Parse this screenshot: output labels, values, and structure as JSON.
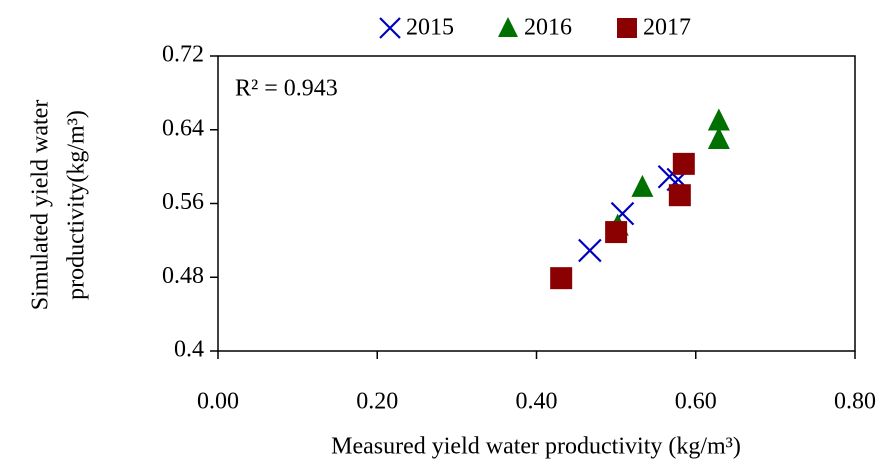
{
  "chart_data": {
    "type": "scatter",
    "xlabel": "Measured yield water productivity (kg/m³)",
    "ylabel": [
      "Simulated yield water",
      "productivity(kg/m³)"
    ],
    "annotation": "R² = 0.943",
    "xlim": [
      0,
      0.8
    ],
    "xticks": [
      {
        "value": 0,
        "label": "0.00"
      },
      {
        "value": 0.2,
        "label": "0.20"
      },
      {
        "value": 0.4,
        "label": "0.40"
      },
      {
        "value": 0.6,
        "label": "0.60"
      },
      {
        "value": 0.8,
        "label": "0.80"
      }
    ],
    "ylim": [
      0.4,
      0.72
    ],
    "yticks": [
      0.4,
      0.48,
      0.56,
      0.64,
      0.72
    ],
    "series": [
      {
        "name": "2015",
        "color": "#0000c0",
        "marker": "x",
        "x": [
          0.467,
          0.508,
          0.567,
          0.578
        ],
        "values": [
          0.509,
          0.549,
          0.589,
          0.586
        ]
      },
      {
        "name": "2016",
        "color": "#007000",
        "marker": "triangle",
        "x": [
          0.502,
          0.533,
          0.629,
          0.629
        ],
        "values": [
          0.536,
          0.578,
          0.65,
          0.63
        ]
      },
      {
        "name": "2017",
        "color": "#8b0000",
        "marker": "square",
        "x": [
          0.431,
          0.5,
          0.585,
          0.58
        ],
        "values": [
          0.479,
          0.529,
          0.603,
          0.569
        ]
      }
    ]
  }
}
